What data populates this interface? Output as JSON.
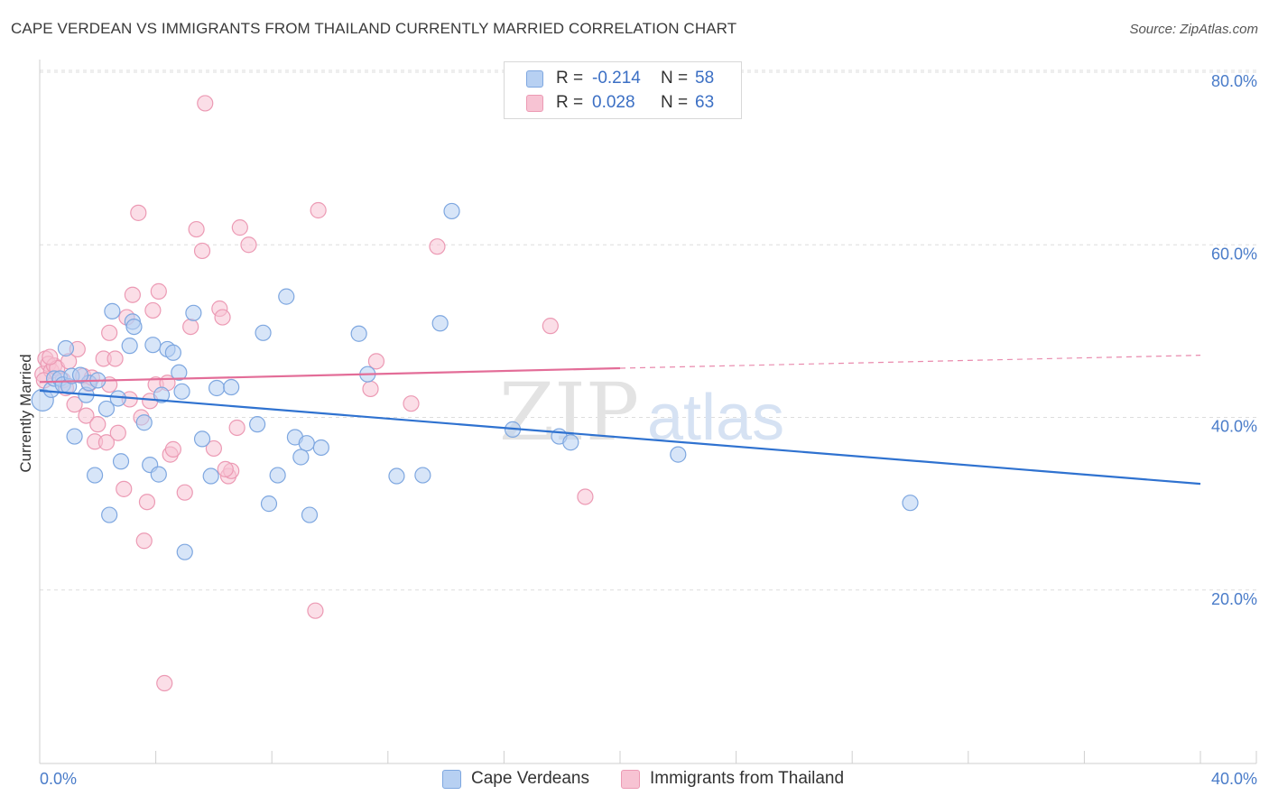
{
  "header": {
    "title": "CAPE VERDEAN VS IMMIGRANTS FROM THAILAND CURRENTLY MARRIED CORRELATION CHART",
    "source": "Source: ZipAtlas.com"
  },
  "legend": {
    "series1": {
      "r_label": "R =",
      "r_value": "-0.214",
      "n_label": "N =",
      "n_value": "58"
    },
    "series2": {
      "r_label": "R =",
      "r_value": "0.028",
      "n_label": "N =",
      "n_value": "63"
    }
  },
  "bottom_legend": {
    "series1": "Cape Verdeans",
    "series2": "Immigrants from Thailand"
  },
  "watermark": {
    "zip": "ZIP",
    "atlas": "atlas"
  },
  "colors": {
    "blue_fill": "#b7d0f2",
    "blue_stroke": "#7ea7e0",
    "blue_line": "#2f72d0",
    "pink_fill": "#f7c3d3",
    "pink_stroke": "#ec9ab4",
    "pink_line": "#e36d98",
    "grid": "#dddddd",
    "tick_text": "#4a7cc9"
  },
  "chart_data": {
    "type": "scatter",
    "title": "CAPE VERDEAN VS IMMIGRANTS FROM THAILAND CURRENTLY MARRIED CORRELATION CHART",
    "xlabel": "",
    "ylabel": "Currently Married",
    "xlim": [
      0,
      40
    ],
    "ylim": [
      0,
      80
    ],
    "x_tick_labels": [
      "0.0%",
      "40.0%"
    ],
    "y_ticks": [
      20,
      40,
      60,
      80
    ],
    "y_tick_labels": [
      "20.0%",
      "40.0%",
      "60.0%",
      "80.0%"
    ],
    "grid": true,
    "series": [
      {
        "name": "Cape Verdeans",
        "color": "blue",
        "trend": {
          "x": [
            0,
            40
          ],
          "y": [
            43.1,
            32.3
          ],
          "style": "solid"
        },
        "points": [
          [
            0.1,
            42.0
          ],
          [
            0.4,
            43.2
          ],
          [
            0.5,
            44.5
          ],
          [
            0.7,
            44.5
          ],
          [
            0.8,
            43.8
          ],
          [
            0.9,
            48.0
          ],
          [
            1.0,
            43.6
          ],
          [
            1.1,
            44.8
          ],
          [
            1.2,
            37.8
          ],
          [
            1.6,
            42.6
          ],
          [
            1.7,
            44.0
          ],
          [
            1.9,
            33.3
          ],
          [
            2.0,
            44.3
          ],
          [
            2.3,
            41.0
          ],
          [
            2.4,
            28.7
          ],
          [
            2.5,
            52.3
          ],
          [
            2.7,
            42.2
          ],
          [
            2.8,
            34.9
          ],
          [
            3.1,
            48.3
          ],
          [
            3.2,
            51.1
          ],
          [
            3.25,
            50.5
          ],
          [
            3.6,
            39.4
          ],
          [
            3.8,
            34.5
          ],
          [
            3.9,
            48.4
          ],
          [
            4.1,
            33.4
          ],
          [
            4.2,
            42.6
          ],
          [
            4.4,
            47.9
          ],
          [
            4.6,
            47.5
          ],
          [
            4.8,
            45.2
          ],
          [
            4.9,
            43.0
          ],
          [
            5.0,
            24.4
          ],
          [
            5.3,
            52.1
          ],
          [
            5.6,
            37.5
          ],
          [
            5.9,
            33.2
          ],
          [
            6.1,
            43.4
          ],
          [
            6.6,
            43.5
          ],
          [
            7.5,
            39.2
          ],
          [
            7.7,
            49.8
          ],
          [
            7.9,
            30.0
          ],
          [
            8.2,
            33.3
          ],
          [
            8.5,
            54.0
          ],
          [
            8.8,
            37.7
          ],
          [
            9.2,
            37.0
          ],
          [
            9.3,
            28.7
          ],
          [
            9.0,
            35.4
          ],
          [
            9.7,
            36.5
          ],
          [
            11.0,
            49.7
          ],
          [
            11.3,
            45.0
          ],
          [
            12.3,
            33.2
          ],
          [
            13.2,
            33.3
          ],
          [
            13.8,
            50.9
          ],
          [
            14.2,
            63.9
          ],
          [
            16.3,
            38.6
          ],
          [
            17.9,
            37.8
          ],
          [
            18.3,
            37.1
          ],
          [
            22.0,
            35.7
          ],
          [
            30.0,
            30.1
          ],
          [
            1.4,
            44.9
          ]
        ]
      },
      {
        "name": "Immigrants from Thailand",
        "color": "pink",
        "trend": {
          "x": [
            0,
            20
          ],
          "y": [
            44.1,
            45.7
          ],
          "style": "solid",
          "extension": {
            "x": [
              20,
              40
            ],
            "y": [
              45.7,
              47.2
            ],
            "style": "dashed"
          }
        },
        "points": [
          [
            0.1,
            45.0
          ],
          [
            0.2,
            46.8
          ],
          [
            0.3,
            46.2
          ],
          [
            0.4,
            45.4
          ],
          [
            0.5,
            46.0
          ],
          [
            0.6,
            45.7
          ],
          [
            0.8,
            44.3
          ],
          [
            0.9,
            43.4
          ],
          [
            1.0,
            46.5
          ],
          [
            1.2,
            41.5
          ],
          [
            1.3,
            47.9
          ],
          [
            1.5,
            44.8
          ],
          [
            1.6,
            40.2
          ],
          [
            1.7,
            43.9
          ],
          [
            1.8,
            44.6
          ],
          [
            1.9,
            37.2
          ],
          [
            2.0,
            39.2
          ],
          [
            2.2,
            46.8
          ],
          [
            2.3,
            37.1
          ],
          [
            2.4,
            43.8
          ],
          [
            2.4,
            49.8
          ],
          [
            2.6,
            46.8
          ],
          [
            2.7,
            38.2
          ],
          [
            2.9,
            31.7
          ],
          [
            3.0,
            51.6
          ],
          [
            3.1,
            42.1
          ],
          [
            3.2,
            54.2
          ],
          [
            3.4,
            63.7
          ],
          [
            3.5,
            40.0
          ],
          [
            3.6,
            25.7
          ],
          [
            3.7,
            30.2
          ],
          [
            3.8,
            41.9
          ],
          [
            3.9,
            52.4
          ],
          [
            4.0,
            43.8
          ],
          [
            4.1,
            54.6
          ],
          [
            4.3,
            9.2
          ],
          [
            4.4,
            44.0
          ],
          [
            4.5,
            35.7
          ],
          [
            4.6,
            36.3
          ],
          [
            5.0,
            31.3
          ],
          [
            5.2,
            50.5
          ],
          [
            5.4,
            61.8
          ],
          [
            5.6,
            59.3
          ],
          [
            5.7,
            76.4
          ],
          [
            6.0,
            36.4
          ],
          [
            6.2,
            52.6
          ],
          [
            6.3,
            51.6
          ],
          [
            6.5,
            33.2
          ],
          [
            6.6,
            33.8
          ],
          [
            6.8,
            38.8
          ],
          [
            6.9,
            62.0
          ],
          [
            7.2,
            60.0
          ],
          [
            9.5,
            17.6
          ],
          [
            9.6,
            64.0
          ],
          [
            11.4,
            43.3
          ],
          [
            11.6,
            46.5
          ],
          [
            12.8,
            41.6
          ],
          [
            13.7,
            59.8
          ],
          [
            17.6,
            50.6
          ],
          [
            18.8,
            30.8
          ],
          [
            0.15,
            44.3
          ],
          [
            0.35,
            47.0
          ],
          [
            6.4,
            34.0
          ]
        ]
      }
    ]
  }
}
